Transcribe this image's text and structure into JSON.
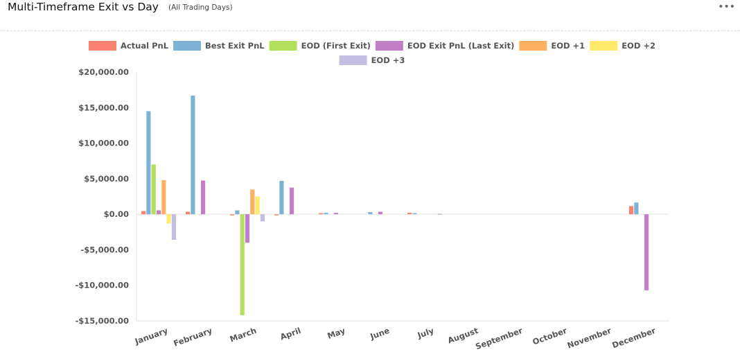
{
  "header": {
    "title": "Multi-Timeframe Exit vs Day",
    "subtitle": "(All Trading Days)",
    "menu_icon": "more-horizontal-icon"
  },
  "chart_data": {
    "type": "bar",
    "categories": [
      "January",
      "February",
      "March",
      "April",
      "May",
      "June",
      "July",
      "August",
      "September",
      "October",
      "November",
      "December"
    ],
    "series": [
      {
        "name": "Actual PnL",
        "color": "#f98270",
        "values": [
          450,
          350,
          -100,
          -50,
          150,
          0,
          200,
          0,
          0,
          0,
          0,
          1150
        ]
      },
      {
        "name": "Best Exit PnL",
        "color": "#7fb3d6",
        "values": [
          14500,
          16700,
          550,
          4700,
          200,
          300,
          150,
          0,
          0,
          0,
          0,
          1650
        ]
      },
      {
        "name": "EOD (First Exit)",
        "color": "#b3e05c",
        "values": [
          7000,
          0,
          -14200,
          0,
          0,
          0,
          0,
          0,
          0,
          0,
          0,
          0
        ]
      },
      {
        "name": "EOD Exit PnL (Last Exit)",
        "color": "#c17ec6",
        "values": [
          550,
          4750,
          -4000,
          3750,
          200,
          350,
          0,
          0,
          0,
          0,
          0,
          -10700
        ]
      },
      {
        "name": "EOD +1",
        "color": "#fdb05f",
        "values": [
          4800,
          0,
          3500,
          0,
          0,
          0,
          0,
          0,
          0,
          0,
          0,
          0
        ]
      },
      {
        "name": "EOD +2",
        "color": "#fee96b",
        "values": [
          -1300,
          0,
          2500,
          0,
          0,
          0,
          0,
          0,
          0,
          0,
          0,
          0
        ]
      },
      {
        "name": "EOD +3",
        "color": "#c4bfe0",
        "values": [
          -3600,
          0,
          -1000,
          0,
          0,
          0,
          100,
          0,
          0,
          0,
          0,
          0
        ]
      }
    ],
    "ylim": [
      -15000,
      20000
    ],
    "yticks": [
      20000,
      15000,
      10000,
      5000,
      0,
      -5000,
      -10000,
      -15000
    ],
    "ytick_labels": [
      "$20,000.00",
      "$15,000.00",
      "$10,000.00",
      "$5,000.00",
      "$0.00",
      "-$5,000.00",
      "-$10,000.00",
      "-$15,000.00"
    ],
    "legend_position": "top",
    "grid": false
  }
}
